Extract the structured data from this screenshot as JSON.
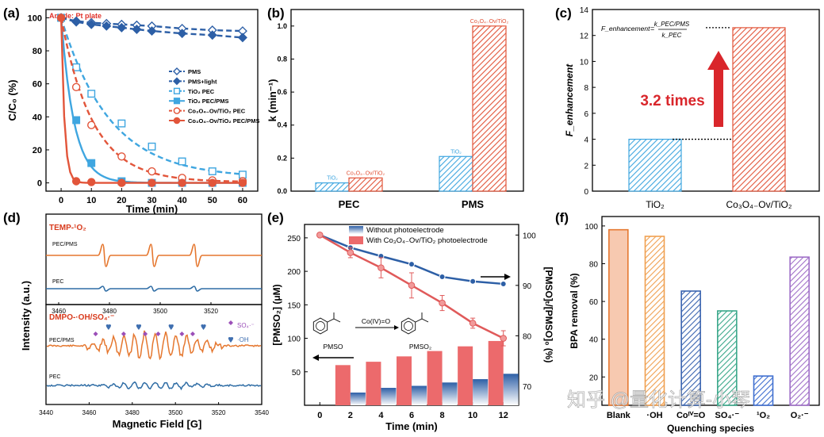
{
  "watermark": "知乎 @量化计算-小琴",
  "colors": {
    "blue_dark": "#2d5fa6",
    "blue_light": "#3fa6e0",
    "orange_red": "#e2553a",
    "red": "#e0312a",
    "orange": "#e58532",
    "trace_orange": "#e5772f",
    "trace_blue": "#2f6da5",
    "bar_pink": "#ec6a6c",
    "marker_purple": "#9b4fb8",
    "marker_blue": "#3f6fb0",
    "arrow_red": "#d9262b"
  },
  "chart_data": [
    {
      "panel": "(a)",
      "type": "line",
      "annotation": "Anode: Pt plate",
      "xlabel": "Time (min)",
      "ylabel": "C/C₀ (%)",
      "xlim": [
        -5,
        65
      ],
      "ylim": [
        -5,
        105
      ],
      "xticks": [
        0,
        10,
        20,
        30,
        40,
        50,
        60
      ],
      "yticks": [
        0,
        20,
        40,
        60,
        80,
        100
      ],
      "series": [
        {
          "name": "PMS",
          "marker": "diamond-open",
          "color": "#2d5fa6",
          "line": "dash",
          "x": [
            0,
            5,
            10,
            15,
            20,
            25,
            30,
            40,
            50,
            60
          ],
          "y": [
            100,
            98,
            97,
            96.5,
            96,
            95.5,
            95,
            93.5,
            92.5,
            92
          ]
        },
        {
          "name": "PMS+light",
          "marker": "diamond",
          "color": "#2d5fa6",
          "line": "dash",
          "x": [
            0,
            5,
            10,
            15,
            20,
            25,
            30,
            40,
            50,
            60
          ],
          "y": [
            100,
            97.5,
            96,
            95,
            94,
            93,
            92,
            90.5,
            89.5,
            88
          ]
        },
        {
          "name": "TiO₂ PEC",
          "marker": "square-open",
          "color": "#3fa6e0",
          "line": "dash",
          "x": [
            0,
            5,
            10,
            20,
            30,
            40,
            50,
            60
          ],
          "y": [
            100,
            70,
            54,
            36,
            22,
            13,
            7,
            5
          ]
        },
        {
          "name": "TiO₂ PEC/PMS",
          "marker": "square",
          "color": "#3fa6e0",
          "line": "solid",
          "x": [
            0,
            5,
            10,
            20,
            30,
            40,
            50,
            60
          ],
          "y": [
            100,
            38,
            12,
            1,
            0,
            0,
            0,
            0
          ]
        },
        {
          "name": "Co₃O₄₋Ov/TiO₂ PEC",
          "marker": "circle-open",
          "color": "#e2553a",
          "line": "dash",
          "x": [
            0,
            5,
            10,
            20,
            30,
            40,
            50,
            60
          ],
          "y": [
            100,
            58,
            35,
            16,
            7,
            3,
            1.5,
            1
          ]
        },
        {
          "name": "Co₃O₄₋Ov/TiO₂ PEC/PMS",
          "marker": "circle",
          "color": "#e2553a",
          "line": "solid",
          "x": [
            0,
            5,
            10,
            20,
            30,
            40,
            50,
            60
          ],
          "y": [
            100,
            1,
            0.5,
            0,
            0,
            0,
            0,
            0
          ]
        }
      ]
    },
    {
      "panel": "(b)",
      "type": "bar",
      "xlabel": "",
      "ylabel": "k (min⁻¹)",
      "ylim": [
        0,
        1.1
      ],
      "yticks": [
        0.0,
        0.2,
        0.4,
        0.6,
        0.8,
        1.0
      ],
      "categories": [
        "PEC",
        "PMS"
      ],
      "series": [
        {
          "name": "TiO₂",
          "color": "#3fa6e0",
          "values": [
            0.05,
            0.21
          ]
        },
        {
          "name": "Co₃O₄₋Ov/TiO₂",
          "color": "#e2553a",
          "values": [
            0.08,
            1.0
          ]
        }
      ]
    },
    {
      "panel": "(c)",
      "type": "bar",
      "ylabel": "F_enhancement",
      "ylim": [
        0,
        14
      ],
      "yticks": [
        0,
        2,
        4,
        6,
        8,
        10,
        12,
        14
      ],
      "categories": [
        "TiO₂",
        "Co₃O₄₋Ov/TiO₂"
      ],
      "values": [
        4.0,
        12.6
      ],
      "colors": [
        "#3fa6e0",
        "#e2553a"
      ],
      "formula_lhs": "F_enhancement",
      "formula_num": "k_PEC/PMS",
      "formula_den": "k_PEC",
      "annotation": "3.2 times"
    },
    {
      "panel": "(d)",
      "type": "line",
      "xlabel": "Magnetic Field [G]",
      "ylabel": "Intensity (a.u.)",
      "top": {
        "title": "TEMP-¹O₂",
        "xlim": [
          3455,
          3540
        ],
        "xticks": [
          3460,
          3480,
          3500,
          3520
        ],
        "series": [
          {
            "name": "PEC/PMS",
            "color": "#e5772f",
            "peaks": [
              3478,
              3497,
              3514
            ]
          },
          {
            "name": "PEC",
            "color": "#2f6da5",
            "peaks": [
              3478,
              3497,
              3514
            ]
          }
        ]
      },
      "bottom": {
        "title": "DMPO-·OH/SO₄·⁻",
        "xlim": [
          3440,
          3540
        ],
        "xticks": [
          3440,
          3460,
          3480,
          3500,
          3520,
          3540
        ],
        "legend": [
          "SO₄·⁻",
          "·OH"
        ],
        "series": [
          {
            "name": "PEC/PMS",
            "color": "#e5772f"
          },
          {
            "name": "PEC",
            "color": "#2f6da5"
          }
        ]
      }
    },
    {
      "panel": "(e)",
      "type": "bar",
      "xlabel": "Time (min)",
      "ylabel_left": "[PMSO₂] (μM)",
      "ylabel_right": "[PMSO]ₜ/[PMSO]₀ (%)",
      "xlim": [
        -1,
        13
      ],
      "xticks": [
        0,
        2,
        4,
        6,
        8,
        10,
        12
      ],
      "ylim_left": [
        0,
        270
      ],
      "yticks_left": [
        50,
        100,
        150,
        200,
        250
      ],
      "ylim_right": [
        66.2,
        102.1
      ],
      "yticks_right": [
        70,
        80,
        90,
        100
      ],
      "legend": [
        "Without photoelectrode",
        "With Co₃O₄₋Ov/TiO₂ photoelectrode"
      ],
      "reaction": {
        "from": "PMSO",
        "to": "PMSO₂",
        "reagent": "Co(IV)=O"
      },
      "bars_with": {
        "x": [
          2,
          4,
          6,
          8,
          10,
          12
        ],
        "y": [
          60,
          65,
          73,
          81,
          88,
          96
        ],
        "color": "#ec6a6c"
      },
      "bars_without": {
        "x": [
          2,
          4,
          6,
          8,
          10,
          12
        ],
        "y": [
          19,
          26,
          29,
          34,
          39,
          47
        ],
        "color": "#2d5fa6"
      },
      "line_without": {
        "x": [
          0,
          2,
          4,
          6,
          8,
          10,
          12
        ],
        "y": [
          100,
          97.5,
          95.8,
          94.2,
          91.7,
          90.8,
          90.3
        ]
      },
      "line_with": {
        "x": [
          0,
          2,
          4,
          6,
          8,
          10,
          12
        ],
        "y": [
          100,
          96.5,
          93.5,
          90.0,
          86.5,
          82.5,
          79.5
        ],
        "err": [
          0,
          1.0,
          2.0,
          2.5,
          1.5,
          1.0,
          1.5
        ]
      }
    },
    {
      "panel": "(f)",
      "type": "bar",
      "xlabel": "Quenching species",
      "ylabel": "BPA removal (%)",
      "ylim": [
        5,
        105
      ],
      "yticks": [
        20,
        40,
        60,
        80,
        100
      ],
      "categories": [
        "Blank",
        "·OH",
        "Coᴵⱽ=O",
        "SO₄·⁻",
        "¹O₂",
        "O₂·⁻"
      ],
      "values": [
        98,
        94.5,
        65.5,
        55,
        20.5,
        83.5
      ],
      "colors": [
        "#e5772f",
        "#f0a050",
        "#3a64b0",
        "#3aa88a",
        "#3f6fd0",
        "#a070c8"
      ]
    }
  ]
}
